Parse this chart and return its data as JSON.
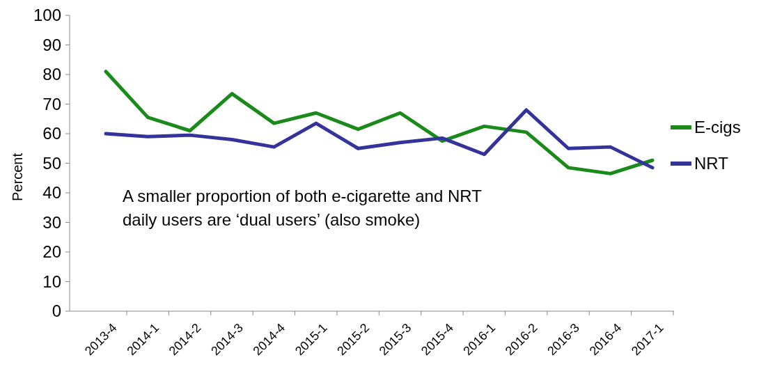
{
  "chart_data": {
    "type": "line",
    "ylabel": "Percent",
    "categories": [
      "2013-4",
      "2014-1",
      "2014-2",
      "2014-3",
      "2014-4",
      "2015-1",
      "2015-2",
      "2015-3",
      "2015-4",
      "2016-1",
      "2016-2",
      "2016-3",
      "2016-4",
      "2017-1"
    ],
    "series": [
      {
        "name": "E-cigs",
        "color": "#1a8a1a",
        "values": [
          81,
          65.5,
          61,
          73.5,
          63.5,
          67,
          61.5,
          67,
          57.5,
          62.5,
          60.5,
          48.5,
          46.5,
          51
        ]
      },
      {
        "name": "NRT",
        "color": "#333399",
        "values": [
          60,
          59,
          59.5,
          58,
          55.5,
          63.5,
          55,
          57,
          58.5,
          53,
          68,
          55,
          55.5,
          48.5
        ]
      }
    ],
    "ylim": [
      0,
      100
    ],
    "yticks": [
      0,
      10,
      20,
      30,
      40,
      50,
      60,
      70,
      80,
      90,
      100
    ],
    "grid": false,
    "legend": "right",
    "marker": "none",
    "line_style": "solid",
    "annotations": [
      "A smaller proportion of both e-cigarette and NRT daily users are ‘dual users’ (also smoke)"
    ]
  }
}
